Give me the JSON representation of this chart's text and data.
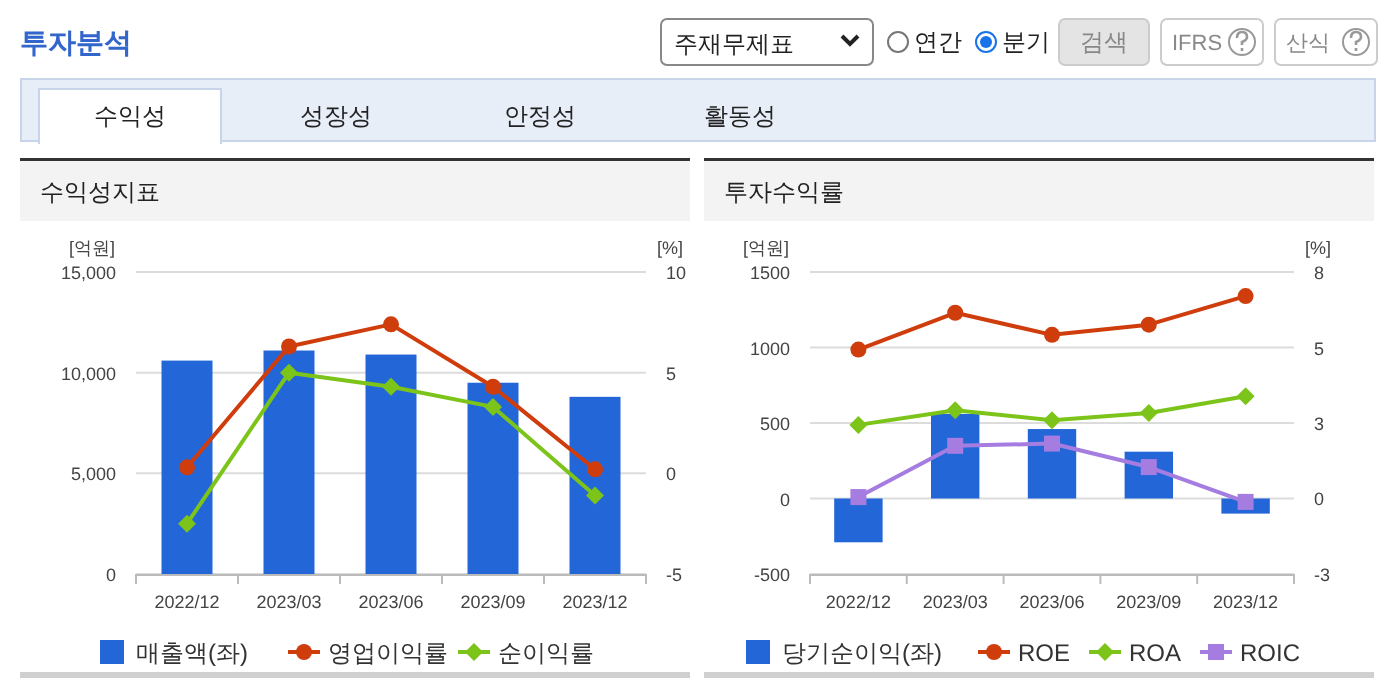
{
  "chart_data": [
    {
      "type": "other",
      "title": "투자분석",
      "annotations": [
        "주재무제표",
        "연간",
        "분기",
        "검색",
        "IFRS",
        "산식",
        "수익성",
        "성장성",
        "안정성",
        "활동성"
      ]
    },
    {
      "type": "bar",
      "title": "수익성지표",
      "ylabel": "[억원]",
      "y2label": "[%]",
      "categories": [
        "2022/12",
        "2023/03",
        "2023/06",
        "2023/09",
        "2023/12"
      ],
      "ylim": [
        0,
        15000
      ],
      "yticks": [
        0,
        {
          "value": 5000,
          "label": "5,000"
        },
        {
          "value": 10000,
          "label": "10,000"
        },
        {
          "value": 15000,
          "label": "15,000"
        }
      ],
      "y2lim": [
        -5,
        10
      ],
      "y2ticks": [
        -5,
        0,
        5,
        10
      ],
      "grid": "y",
      "legend": "bottom",
      "series": [
        {
          "name": "매출액(좌)",
          "type": "bar",
          "color": "#2366d8",
          "values": [
            10600,
            11100,
            10900,
            9500,
            8800
          ]
        },
        {
          "name": "영업이익률",
          "type": "line",
          "axis": "y2",
          "marker": "circle",
          "color": "#d03d0c",
          "values": [
            0.3,
            6.3,
            7.4,
            4.3,
            0.2
          ]
        },
        {
          "name": "순이익률",
          "type": "line",
          "axis": "y2",
          "marker": "diamond",
          "color": "#7cc419",
          "values": [
            -2.5,
            5.0,
            4.3,
            3.3,
            -1.1
          ]
        }
      ]
    },
    {
      "type": "bar",
      "title": "투자수익률",
      "ylabel": "[억원]",
      "y2label": "[%]",
      "categories": [
        "2022/12",
        "2023/03",
        "2023/06",
        "2023/09",
        "2023/12"
      ],
      "ylim": [
        -500,
        1500
      ],
      "yticks": [
        -500,
        0,
        500,
        1000,
        1500
      ],
      "y2lim": [
        -2.667,
        8
      ],
      "y2ticks": [
        {
          "value": -2.667,
          "label": "-3"
        },
        0,
        {
          "value": 2.667,
          "label": "3"
        },
        {
          "value": 5.333,
          "label": "5"
        },
        8
      ],
      "grid": "y",
      "legend": "bottom",
      "series": [
        {
          "name": "당기순이익(좌)",
          "type": "bar",
          "color": "#2366d8",
          "values": [
            -290,
            560,
            460,
            310,
            -100
          ]
        },
        {
          "name": "ROE",
          "type": "line",
          "axis": "y2",
          "marker": "circle",
          "color": "#d03d0c",
          "values": [
            5.26,
            6.56,
            5.78,
            6.14,
            7.15
          ]
        },
        {
          "name": "ROA",
          "type": "line",
          "axis": "y2",
          "marker": "diamond",
          "color": "#7cc419",
          "values": [
            2.6,
            3.12,
            2.76,
            3.02,
            3.61
          ]
        },
        {
          "name": "ROIC",
          "type": "line",
          "axis": "y2",
          "marker": "square",
          "color": "#a57de0",
          "values": [
            0.05,
            1.86,
            1.94,
            1.11,
            -0.12
          ]
        }
      ]
    }
  ]
}
